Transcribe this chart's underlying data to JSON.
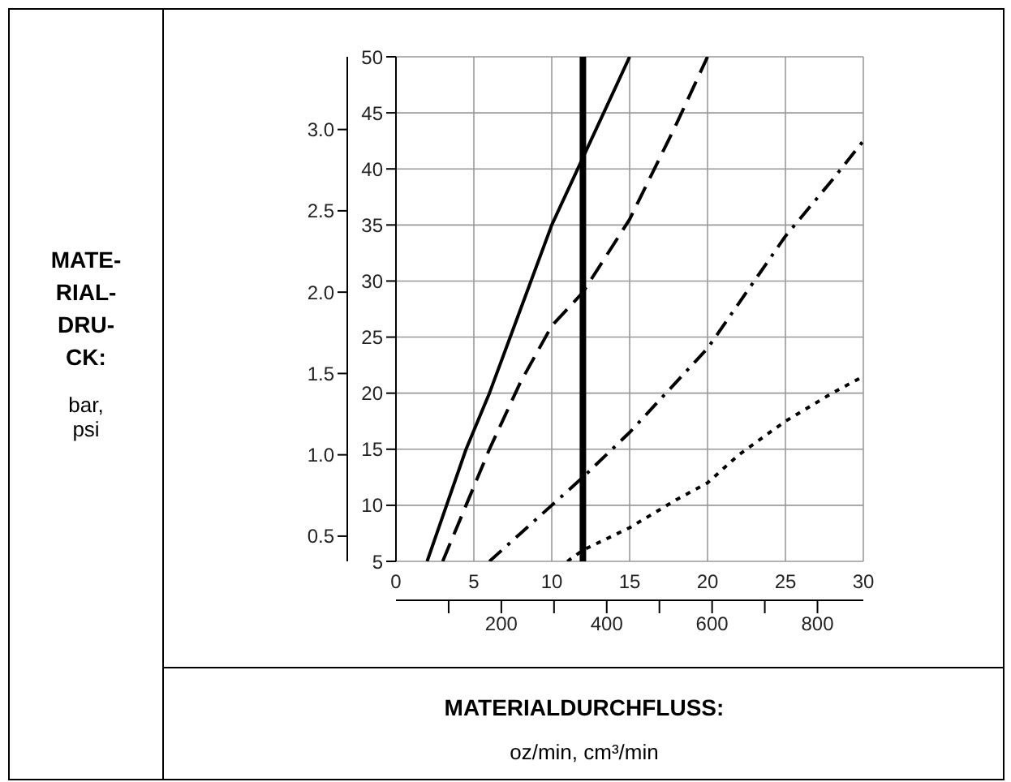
{
  "chart_data": {
    "type": "line",
    "xlabel": "MATERIALDURCHFLUSS:",
    "annotations": [
      "MATE-RIAL-DRU-CK:",
      "bar, psi",
      "oz/min, cm³/min"
    ],
    "xlim": [
      0,
      30
    ],
    "xticks": [
      0,
      5,
      10,
      15,
      20,
      25,
      30
    ],
    "x2lim": [
      0,
      887
    ],
    "x2ticks": [
      {
        "value": 100,
        "label": null
      },
      200,
      {
        "value": 300,
        "label": null
      },
      400,
      {
        "value": 500,
        "label": null
      },
      600,
      {
        "value": 700,
        "label": null
      },
      800
    ],
    "ylim": [
      5,
      50
    ],
    "yticks": [
      5,
      10,
      15,
      20,
      25,
      30,
      35,
      40,
      45,
      50
    ],
    "y2lim": [
      0.345,
      3.447
    ],
    "y2ticks": [
      {
        "value": 0.5,
        "label": "0.5"
      },
      {
        "value": 1,
        "label": "1.0"
      },
      {
        "value": 1.5,
        "label": "1.5"
      },
      {
        "value": 2,
        "label": "2.0"
      },
      {
        "value": 2.5,
        "label": "2.5"
      },
      {
        "value": 3,
        "label": "3.0"
      }
    ],
    "grid": true,
    "legend": false,
    "marker": "none",
    "series": [
      {
        "color": "#000000",
        "line_style": "solid",
        "x": [
          2,
          3,
          4.5,
          6,
          8,
          10,
          12,
          15
        ],
        "values": [
          5,
          9,
          15,
          20,
          27.5,
          35,
          41,
          50
        ]
      },
      {
        "color": "#000000",
        "line_style": "dashed",
        "x": [
          3,
          4.5,
          6,
          8,
          10,
          12,
          15,
          18,
          20
        ],
        "values": [
          5,
          10,
          15,
          21,
          26,
          29,
          35.5,
          44,
          50
        ]
      },
      {
        "color": "#000000",
        "line_style": "dashdot",
        "x": [
          6,
          8,
          10,
          12,
          15,
          18,
          20,
          22,
          25,
          28,
          30
        ],
        "values": [
          5,
          7.5,
          10,
          12.5,
          16.5,
          21,
          24,
          28,
          34,
          39,
          42.5
        ]
      },
      {
        "color": "#000000",
        "line_style": "dotted",
        "x": [
          11,
          12,
          15,
          18,
          20,
          22,
          25,
          28,
          30
        ],
        "values": [
          5,
          6,
          8,
          10.5,
          12,
          14.5,
          17.5,
          20,
          21.5
        ]
      }
    ],
    "ref_lines": [
      {
        "axis": "x",
        "value": 12,
        "label": null,
        "color": "#000000"
      }
    ]
  }
}
